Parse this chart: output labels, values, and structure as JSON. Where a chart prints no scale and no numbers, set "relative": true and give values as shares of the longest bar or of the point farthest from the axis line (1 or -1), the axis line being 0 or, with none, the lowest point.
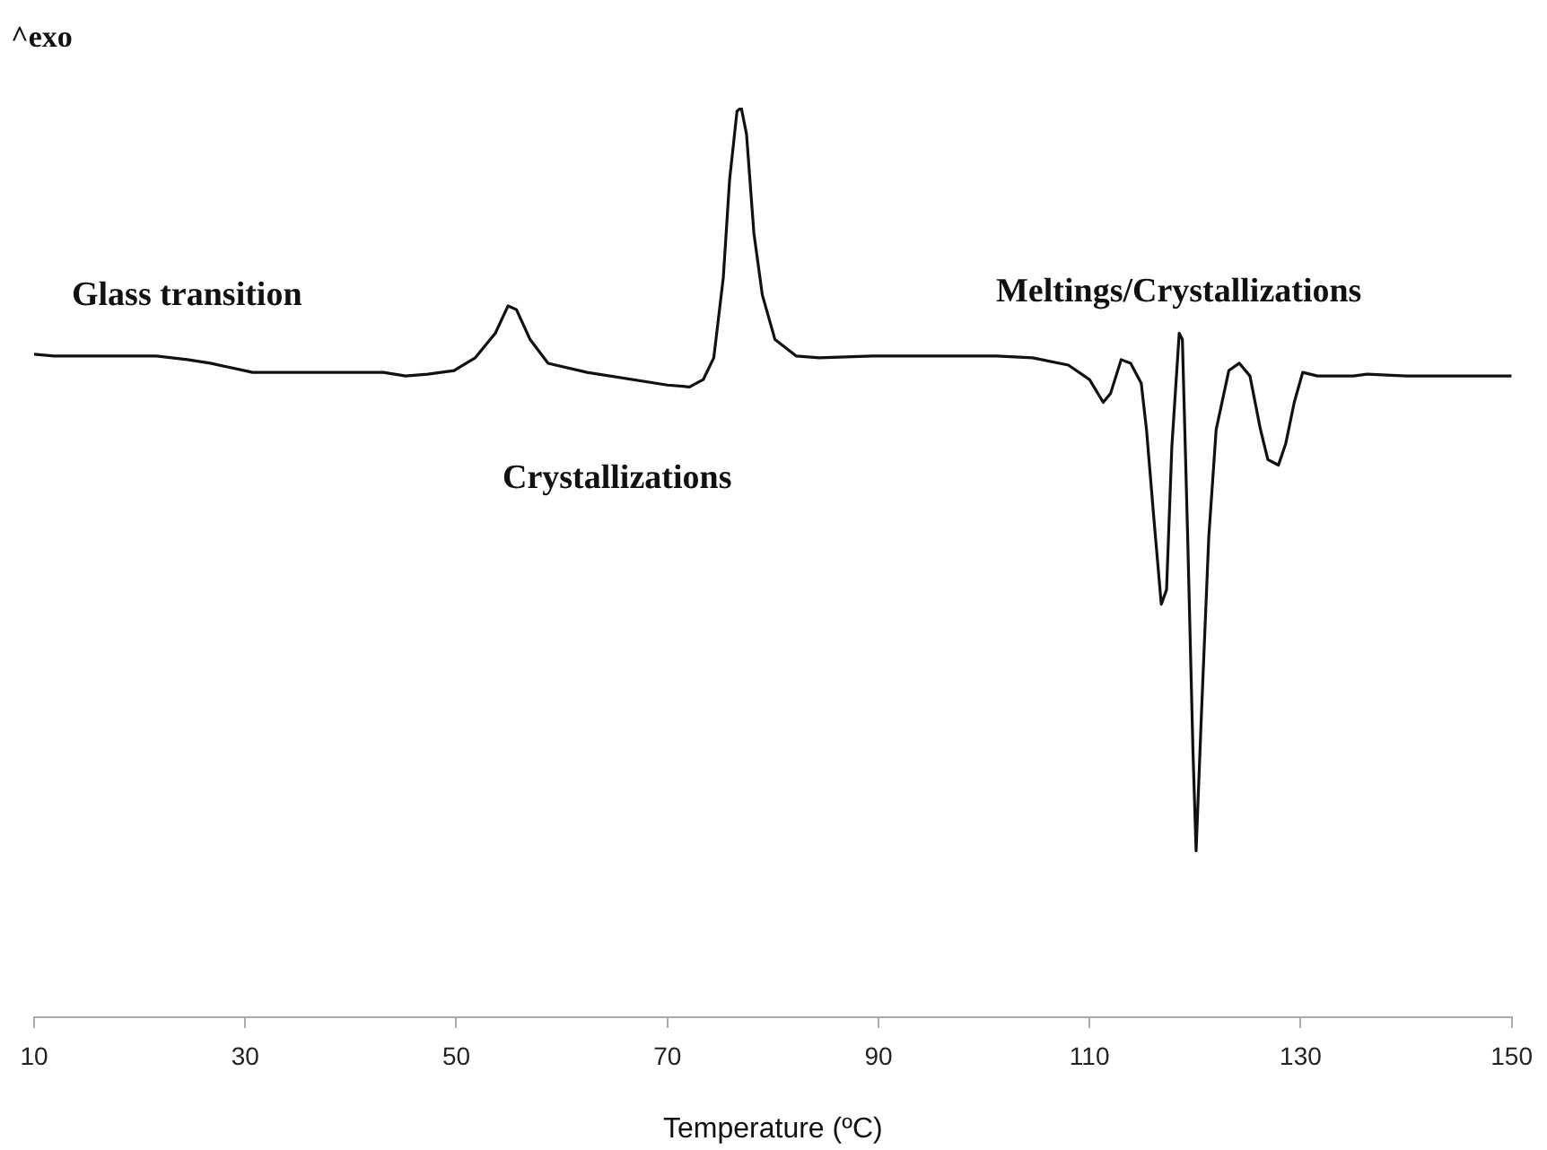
{
  "chart_data": {
    "type": "line",
    "relative": true,
    "ylabel": "^exo",
    "xlabel": "Temperature (ºC)",
    "xlim": [
      10,
      150
    ],
    "xticks": [
      10,
      30,
      50,
      70,
      90,
      110,
      130,
      150
    ],
    "grid": false,
    "legend": false,
    "marker": "none",
    "line_style": "solid",
    "annotations": [
      "Glass transition",
      "Crystallizations",
      "Meltings/Crystallizations"
    ],
    "x": [
      10,
      11.9,
      21.6,
      24.5,
      26.7,
      30.7,
      43.1,
      45.2,
      47.3,
      49.8,
      51.8,
      53.7,
      54.9,
      55.7,
      57.0,
      58.7,
      62.4,
      70.0,
      72.1,
      73.4,
      74.4,
      75.3,
      75.9,
      76.6,
      77.0,
      77.5,
      78.2,
      79.0,
      80.2,
      82.2,
      84.4,
      89.4,
      101.2,
      104.6,
      108.0,
      110.0,
      111.3,
      112.0,
      113.0,
      113.9,
      114.9,
      115.4,
      116.1,
      116.8,
      117.3,
      117.8,
      118.5,
      118.8,
      119.3,
      119.8,
      120.1,
      120.6,
      121.3,
      122.0,
      123.2,
      124.2,
      125.2,
      126.2,
      126.9,
      127.9,
      128.6,
      129.4,
      130.2,
      131.6,
      135.0,
      136.3,
      140.0,
      150
    ],
    "series": [
      {
        "color": "#111111",
        "values": [
          0.729,
          0.727,
          0.727,
          0.723,
          0.719,
          0.709,
          0.709,
          0.705,
          0.707,
          0.711,
          0.725,
          0.752,
          0.782,
          0.778,
          0.745,
          0.719,
          0.709,
          0.695,
          0.693,
          0.701,
          0.725,
          0.813,
          0.921,
          0.996,
          1.0,
          0.971,
          0.862,
          0.794,
          0.745,
          0.727,
          0.725,
          0.727,
          0.727,
          0.725,
          0.717,
          0.701,
          0.676,
          0.686,
          0.723,
          0.719,
          0.697,
          0.646,
          0.548,
          0.454,
          0.47,
          0.627,
          0.752,
          0.745,
          0.528,
          0.293,
          0.183,
          0.332,
          0.528,
          0.646,
          0.711,
          0.719,
          0.705,
          0.646,
          0.613,
          0.607,
          0.631,
          0.676,
          0.709,
          0.705,
          0.705,
          0.707,
          0.705,
          0.705
        ]
      }
    ]
  }
}
